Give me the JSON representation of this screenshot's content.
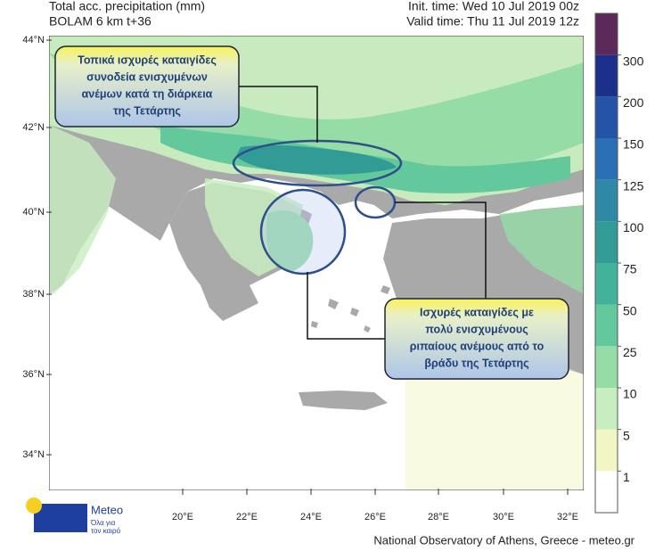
{
  "header": {
    "title": "Total acc. precipitation (mm)",
    "model": "BOLAM 6 km t+36",
    "init_time": "Init. time: Wed 10 Jul 2019 00z",
    "valid_time": "Valid time: Thu 11 Jul 2019 12z"
  },
  "map": {
    "lat_labels": [
      "44°N",
      "42°N",
      "40°N",
      "38°N",
      "36°N",
      "34°N"
    ],
    "lon_labels": [
      "20°E",
      "22°E",
      "24°E",
      "26°E",
      "28°E",
      "30°E",
      "32°E"
    ]
  },
  "colorbar": {
    "levels": [
      1,
      5,
      10,
      25,
      50,
      75,
      100,
      125,
      150,
      200,
      300
    ],
    "colors": [
      "#ffffff",
      "#f2f6c4",
      "#c8edc0",
      "#96dca6",
      "#63c89b",
      "#42b29a",
      "#339b95",
      "#2f88a6",
      "#2a70b4",
      "#2453a7",
      "#1c2f8a",
      "#5b2a5b"
    ]
  },
  "annotations": [
    {
      "lines": [
        "Τοπικά ισχυρές καταιγίδες",
        "συνοδεία ενισχυμένων",
        "ανέμων κατά τη διάρκεια",
        "της Τετάρτης"
      ]
    },
    {
      "lines": [
        "Ισχυρές καταιγίδες με",
        "πολύ ενισχυμένους",
        "ριπαίους ανέμους από το",
        "βράδυ της Τετάρτης"
      ]
    }
  ],
  "logo": {
    "name": "Meteo",
    "tagline": [
      "Όλα για",
      "τον καιρό"
    ]
  },
  "footer": "National Observatory of Athens, Greece - meteo.gr"
}
